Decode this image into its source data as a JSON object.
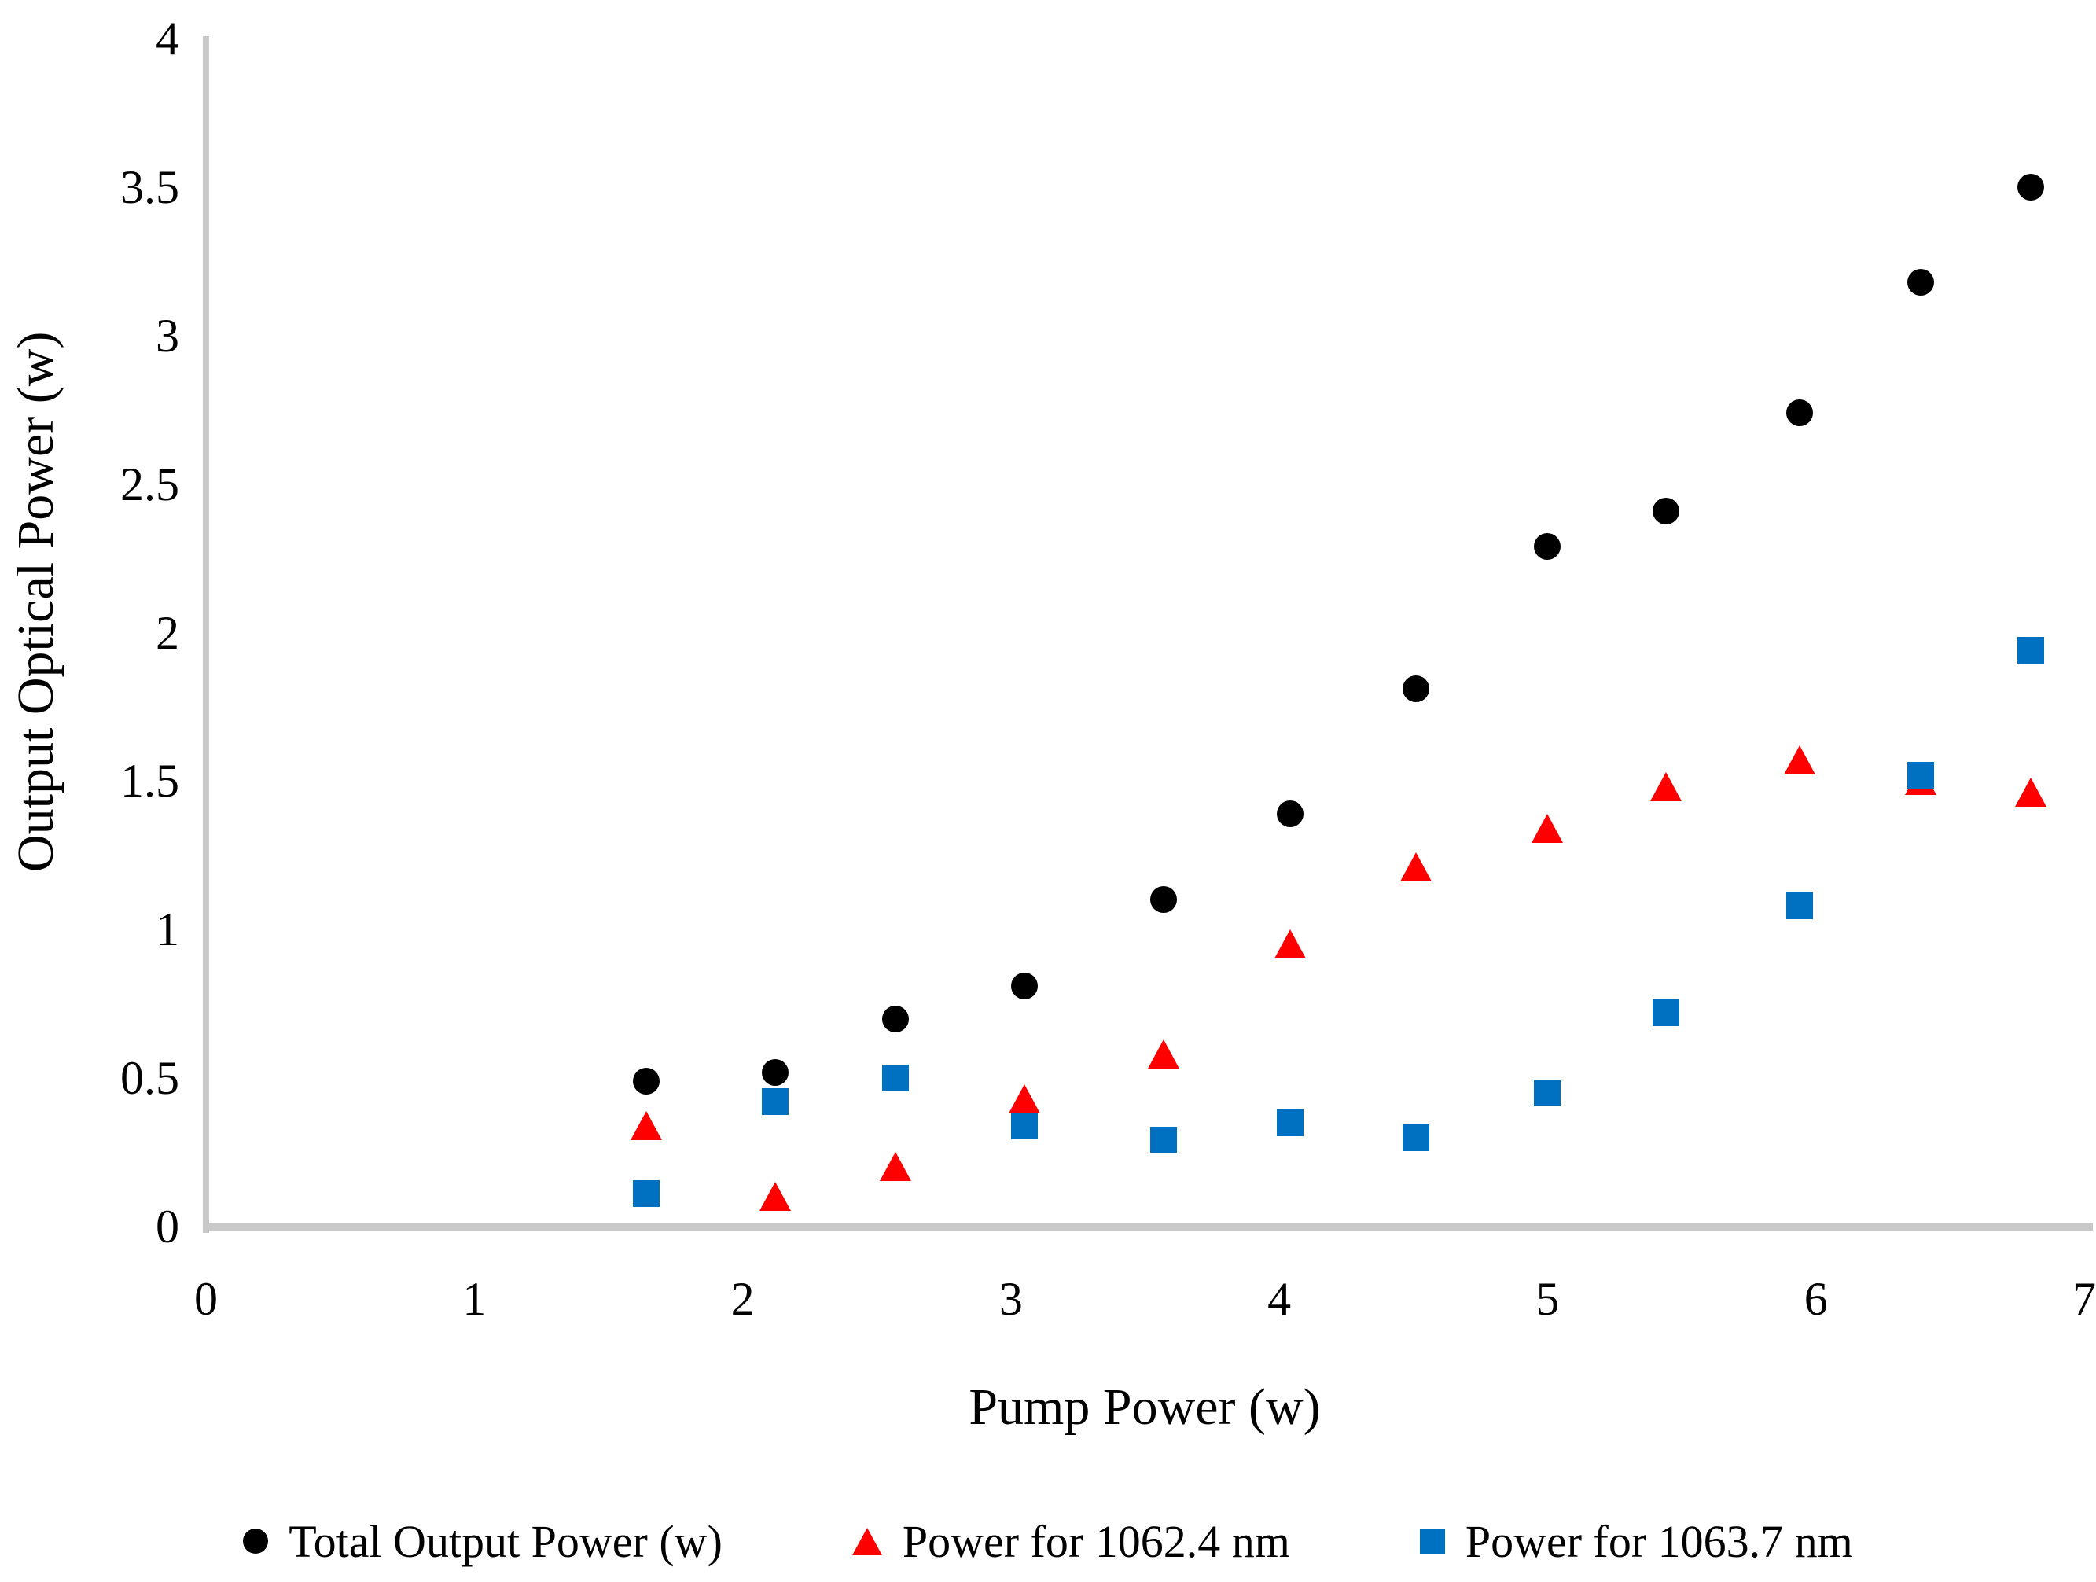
{
  "chart_data": {
    "type": "scatter",
    "title": "",
    "xlabel": "Pump Power (w)",
    "ylabel": "Output Optical Power (w)",
    "xlim": [
      0,
      7
    ],
    "ylim": [
      0,
      4
    ],
    "xticks": [
      0,
      1,
      2,
      3,
      4,
      5,
      6,
      7
    ],
    "yticks": [
      0,
      0.5,
      1,
      1.5,
      2,
      2.5,
      3,
      3.5,
      4
    ],
    "grid": false,
    "legend_position": "bottom",
    "axis_line_color": "#c9c9c9",
    "series": [
      {
        "name": "Total Output Power (w)",
        "marker": "circle",
        "color": "#000000",
        "points": [
          [
            1.64,
            0.49
          ],
          [
            2.12,
            0.52
          ],
          [
            2.57,
            0.7
          ],
          [
            3.05,
            0.81
          ],
          [
            3.57,
            1.1
          ],
          [
            4.04,
            1.39
          ],
          [
            4.51,
            1.81
          ],
          [
            5.0,
            2.29
          ],
          [
            5.44,
            2.41
          ],
          [
            5.94,
            2.74
          ],
          [
            6.39,
            3.18
          ],
          [
            6.8,
            3.5
          ]
        ]
      },
      {
        "name": "Power for 1062.4 nm",
        "marker": "triangle",
        "color": "#ff0000",
        "points": [
          [
            1.64,
            0.34
          ],
          [
            2.12,
            0.1
          ],
          [
            2.57,
            0.2
          ],
          [
            3.05,
            0.43
          ],
          [
            3.57,
            0.58
          ],
          [
            4.04,
            0.95
          ],
          [
            4.51,
            1.21
          ],
          [
            5.0,
            1.34
          ],
          [
            5.44,
            1.48
          ],
          [
            5.94,
            1.57
          ],
          [
            6.39,
            1.5
          ],
          [
            6.8,
            1.46
          ]
        ]
      },
      {
        "name": "Power for 1063.7 nm",
        "marker": "square",
        "color": "#0070c0",
        "points": [
          [
            1.64,
            0.11
          ],
          [
            2.12,
            0.42
          ],
          [
            2.57,
            0.5
          ],
          [
            3.05,
            0.34
          ],
          [
            3.57,
            0.29
          ],
          [
            4.04,
            0.35
          ],
          [
            4.51,
            0.3
          ],
          [
            5.0,
            0.45
          ],
          [
            5.44,
            0.72
          ],
          [
            5.94,
            1.08
          ],
          [
            6.39,
            1.52
          ],
          [
            6.8,
            1.94
          ]
        ]
      }
    ]
  }
}
